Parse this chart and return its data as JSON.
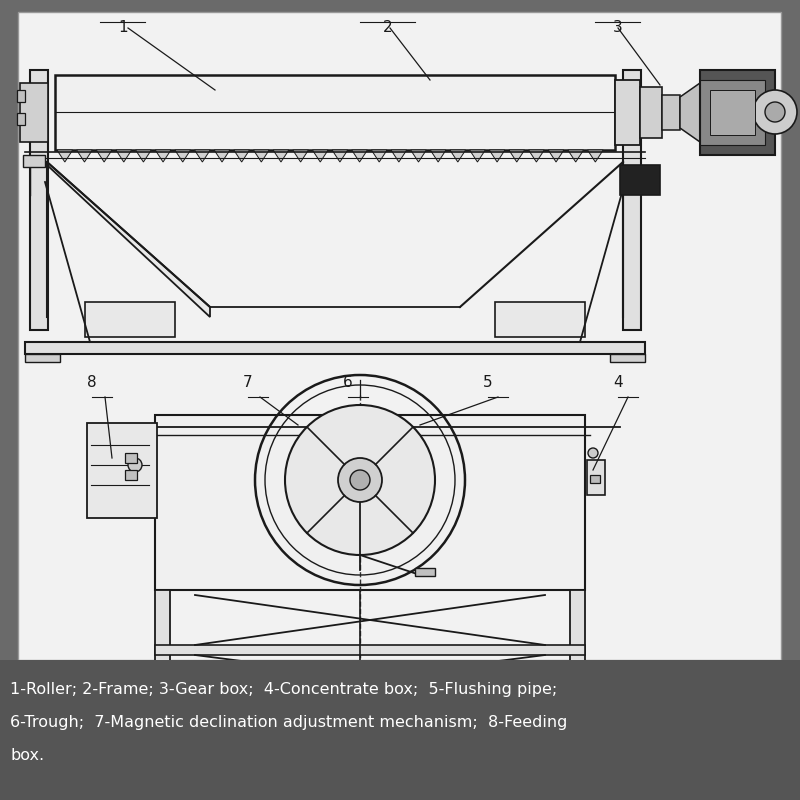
{
  "bg_color": "#6a6a6a",
  "diagram_bg": "#f8f8f8",
  "line_color": "#1a1a1a",
  "dark_fill": "#1a1a1a",
  "mid_fill": "#888888",
  "light_fill": "#dddddd",
  "caption_bg": "#555555",
  "caption_text_color": "#ffffff",
  "caption_line1": "1-Roller; 2-Frame; 3-Gear box;  4-Concentrate box;  5-Flushing pipe;",
  "caption_line2": "6-Trough;  7-Magnetic declination adjustment mechanism;  8-Feeding",
  "caption_line3": "box.",
  "caption_fontsize": 11.5,
  "label_fontsize": 11
}
